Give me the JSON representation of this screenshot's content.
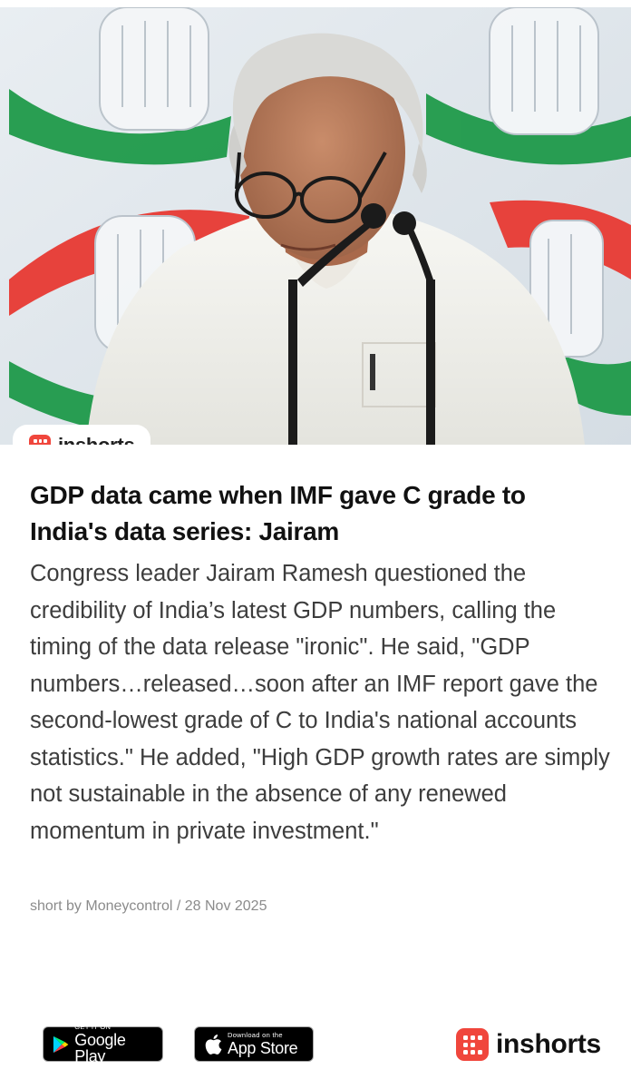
{
  "brand": {
    "name": "inshorts",
    "color": "#f0463c"
  },
  "article": {
    "headline": "GDP data came when IMF gave C grade to India's data series: Jairam",
    "body": "Congress leader Jairam Ramesh questioned the credibility of India’s latest GDP numbers, calling the timing of the data release \"ironic\". He said, \"GDP numbers…released…soon after an IMF report gave the second-lowest grade of C to India's national accounts statistics.\" He added, \"High GDP growth rates are simply not sustainable in the absence of any renewed momentum in private investment.\"",
    "byline": "short by Moneycontrol / 28 Nov 2025"
  },
  "footer": {
    "google_play": {
      "small": "GET IT ON",
      "big": "Google Play"
    },
    "app_store": {
      "small": "Download on the",
      "big": "App Store"
    },
    "brand_name": "inshorts"
  }
}
